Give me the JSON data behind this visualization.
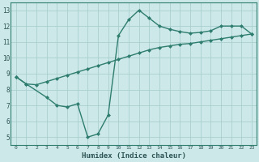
{
  "xlabel": "Humidex (Indice chaleur)",
  "ylabel": "",
  "bg_color": "#cce8e8",
  "line_color": "#2e7d6e",
  "grid_color": "#aacece",
  "xlim": [
    -0.5,
    23.5
  ],
  "ylim": [
    4.5,
    13.5
  ],
  "xticks": [
    0,
    1,
    2,
    3,
    4,
    5,
    6,
    7,
    8,
    9,
    10,
    11,
    12,
    13,
    14,
    15,
    16,
    17,
    18,
    19,
    20,
    21,
    22,
    23
  ],
  "yticks": [
    5,
    6,
    7,
    8,
    9,
    10,
    11,
    12,
    13
  ],
  "line1_x": [
    0,
    1,
    2,
    3,
    4,
    5,
    6,
    7,
    8,
    9,
    10,
    11,
    12,
    13,
    14,
    15,
    16,
    17,
    18,
    19,
    20,
    21,
    22,
    23
  ],
  "line1_y": [
    8.8,
    8.35,
    8.3,
    8.5,
    8.7,
    8.9,
    9.1,
    9.3,
    9.5,
    9.7,
    9.9,
    10.1,
    10.3,
    10.5,
    10.65,
    10.75,
    10.85,
    10.9,
    11.0,
    11.1,
    11.2,
    11.3,
    11.4,
    11.5
  ],
  "line2_x": [
    0,
    1,
    3,
    4,
    5,
    6,
    7,
    8,
    9,
    10,
    11,
    12,
    13,
    14,
    15,
    16,
    17,
    18,
    19,
    20,
    21,
    22,
    23
  ],
  "line2_y": [
    8.8,
    8.35,
    7.5,
    7.0,
    6.9,
    7.1,
    5.0,
    5.2,
    6.4,
    11.4,
    12.4,
    13.0,
    12.5,
    12.0,
    11.8,
    11.65,
    11.55,
    11.6,
    11.7,
    12.0,
    12.0,
    12.0,
    11.5
  ],
  "marker_size": 2.5,
  "line_width": 1.0
}
